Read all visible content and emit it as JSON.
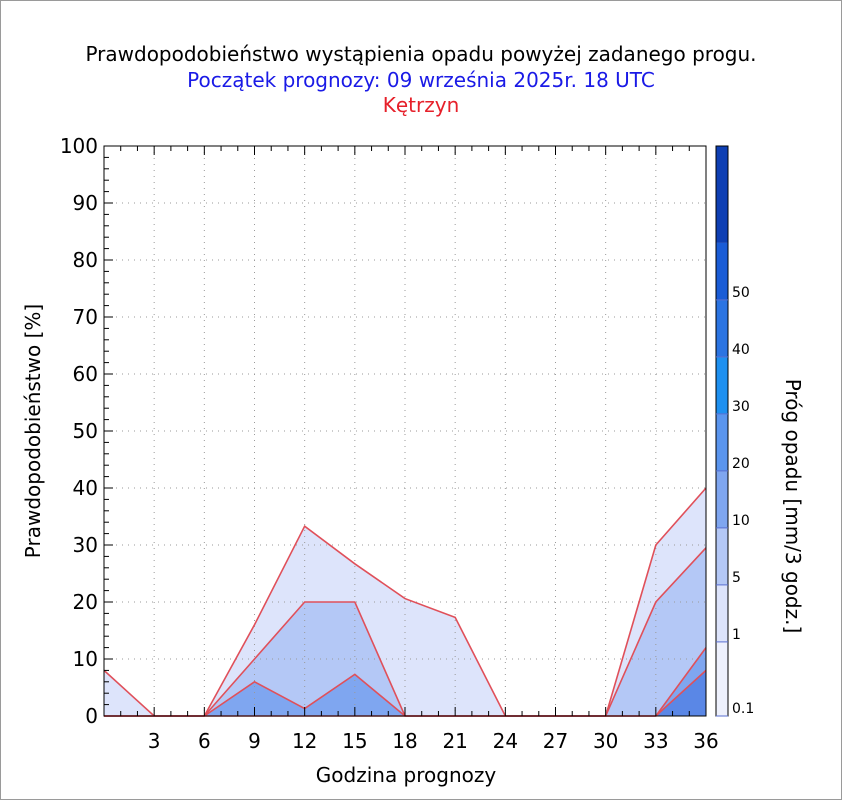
{
  "title": {
    "line1": "Prawdopodobieństwo wystąpienia opadu powyżej zadanego progu.",
    "line2": "Początek prognozy: 09 września 2025r. 18 UTC",
    "line3": "Kętrzyn"
  },
  "chart_data": {
    "type": "area",
    "xlabel": "Godzina prognozy",
    "ylabel": "Prawdopodobieństwo [%]",
    "colorbar_label": "Próg opadu [mm/3 godz.]",
    "xlim": [
      0,
      36
    ],
    "ylim": [
      0,
      100
    ],
    "x_ticks": [
      3,
      6,
      9,
      12,
      15,
      18,
      21,
      24,
      27,
      30,
      33,
      36
    ],
    "y_ticks": [
      0,
      10,
      20,
      30,
      40,
      50,
      60,
      70,
      80,
      90,
      100
    ],
    "grid": true,
    "x": [
      0,
      3,
      6,
      9,
      12,
      15,
      18,
      21,
      24,
      27,
      30,
      33,
      36
    ],
    "series": [
      {
        "name": "0.1",
        "color": "#dde4fb",
        "values": [
          8,
          0,
          0,
          16,
          33.3,
          26.7,
          20.6,
          17.3,
          0,
          0,
          0,
          30,
          40
        ]
      },
      {
        "name": "1",
        "color": "#b4c8f6",
        "values": [
          0,
          0,
          0,
          10,
          20,
          20,
          0,
          0,
          0,
          0,
          0,
          20,
          29.5
        ]
      },
      {
        "name": "5",
        "color": "#7fa6f0",
        "values": [
          0,
          0,
          0,
          6,
          1.3,
          7.3,
          0,
          0,
          0,
          0,
          0,
          0,
          12
        ]
      },
      {
        "name": "10",
        "color": "#5a87e6",
        "values": [
          0,
          0,
          0,
          0,
          0,
          0,
          0,
          0,
          0,
          0,
          0,
          0,
          8
        ]
      }
    ],
    "colorbar": {
      "tick_labels": [
        "0.1",
        "1",
        "5",
        "10",
        "20",
        "30",
        "40",
        "50"
      ],
      "bands": [
        {
          "color": "#eef1fd"
        },
        {
          "color": "#dde4fb"
        },
        {
          "color": "#b4c8f6"
        },
        {
          "color": "#7fa6f0"
        },
        {
          "color": "#5a95ee"
        },
        {
          "color": "#1e90f0"
        },
        {
          "color": "#2b74e2"
        },
        {
          "color": "#1a5cd6"
        },
        {
          "color": "#0e3fb3"
        }
      ]
    },
    "outline_color": "#e0505a"
  }
}
